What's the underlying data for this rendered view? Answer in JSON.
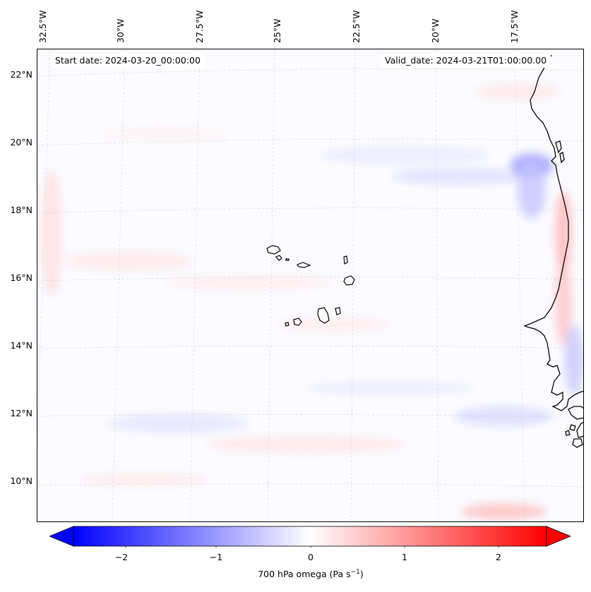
{
  "map": {
    "start_date_text": "Start date: 2024-03-20_00:00:00",
    "valid_date_text": "Valid_date: 2024-03-21T01:00:00.00",
    "lon_labels": [
      "32.5°W",
      "30°W",
      "27.5°W",
      "25°W",
      "22.5°W",
      "20°W",
      "17.5°W"
    ],
    "lat_labels": [
      "22°N",
      "20°N",
      "18°N",
      "16°N",
      "14°N",
      "12°N",
      "10°N"
    ],
    "colors": {
      "negative": "#0000ff",
      "zero": "#ffffff",
      "positive": "#ff0000",
      "coast": "#000000"
    }
  },
  "colorbar": {
    "ticks": [
      "−2",
      "−1",
      "0",
      "1",
      "2"
    ],
    "label_main": "700 hPa omega (Pa s",
    "label_sup": "−1",
    "label_end": ")"
  }
}
